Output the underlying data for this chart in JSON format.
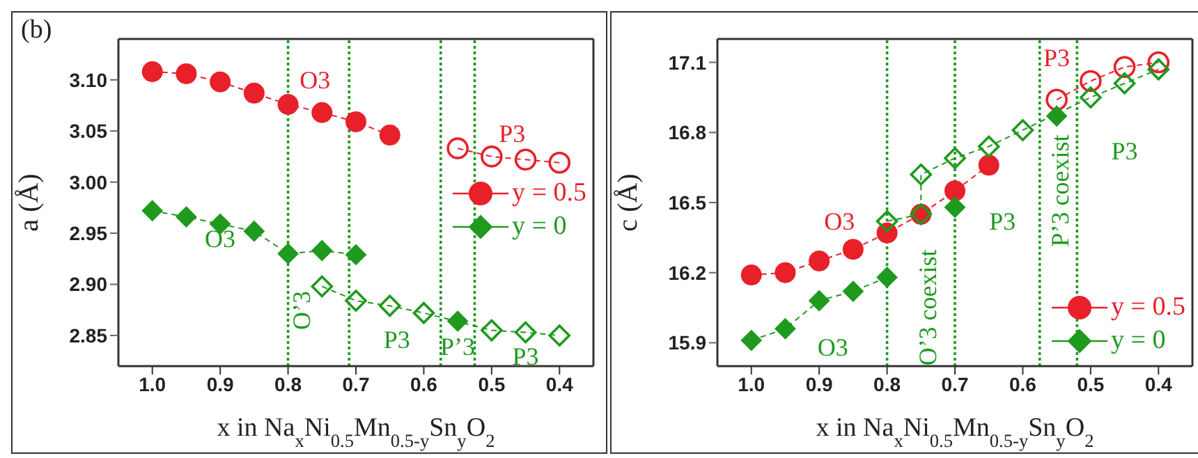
{
  "chart_data": [
    {
      "type": "line",
      "xlabel": "x in Na$_{x}$Ni$_{0.5}$Mn$_{0.5-y}$Sn$_{y}$O$_{2}$",
      "ylabel": "a (Å)",
      "xlim": [
        1.05,
        0.35
      ],
      "ylim": [
        2.82,
        3.14
      ],
      "xticks": [
        {
          "value": 1,
          "label": "1.0"
        },
        0.9,
        0.8,
        0.7,
        0.6,
        0.5,
        0.4
      ],
      "yticks": [
        {
          "value": 2.85,
          "label": "2.85"
        },
        {
          "value": 2.9,
          "label": "2.90"
        },
        {
          "value": 2.95,
          "label": "2.95"
        },
        {
          "value": 3,
          "label": "3.00"
        },
        {
          "value": 3.05,
          "label": "3.05"
        },
        {
          "value": 3.1,
          "label": "3.10"
        }
      ],
      "legend": "right",
      "grid": false,
      "line_style": "dashed",
      "series": [
        {
          "name": "y = 0.5",
          "color": "#e8202a",
          "marker": "circle",
          "x": [
            1,
            0.95,
            0.9,
            0.85,
            0.8,
            0.75,
            0.7,
            0.65
          ],
          "values": [
            3.108,
            3.106,
            3.098,
            3.087,
            3.076,
            3.068,
            3.059,
            3.046
          ]
        },
        {
          "color": "#e8202a",
          "marker": "circle",
          "x": [
            0.55,
            0.5,
            0.45,
            0.4
          ],
          "values": [
            3.033,
            3.025,
            3.022,
            3.019
          ]
        },
        {
          "name": "y = 0",
          "color": "#1f9a1f",
          "marker": "diamond",
          "x": [
            1,
            0.95,
            0.9,
            0.85,
            0.8,
            0.75,
            0.7,
            0.6,
            0.55
          ],
          "values": [
            2.972,
            2.966,
            2.959,
            2.952,
            2.93,
            2.933,
            2.929,
            null,
            2.864
          ]
        },
        {
          "color": "#1f9a1f",
          "marker": "diamond",
          "x": [
            0.75,
            0.7,
            0.65,
            0.6,
            0.5,
            0.45,
            0.4
          ],
          "values": [
            2.898,
            2.884,
            2.879,
            2.872,
            2.855,
            2.853,
            2.85
          ]
        }
      ],
      "ref_lines": [
        {
          "axis": "x",
          "value": 0.8,
          "color": "#1f9a1f",
          "line_style": "dotted"
        },
        {
          "axis": "x",
          "value": 0.71,
          "color": "#1f9a1f",
          "line_style": "dotted"
        },
        {
          "axis": "x",
          "value": 0.575,
          "color": "#1f9a1f",
          "line_style": "dotted"
        },
        {
          "axis": "x",
          "value": 0.525,
          "color": "#1f9a1f",
          "line_style": "dotted"
        }
      ],
      "annotations": [
        "(b)",
        "O3",
        "P3",
        "O3",
        "O’3",
        "P3",
        "P’3",
        "P3"
      ]
    },
    {
      "type": "line",
      "xlabel": "x in Na$_{x}$Ni$_{0.5}$Mn$_{0.5-y}$Sn$_{y}$O$_{2}$",
      "ylabel": "c (Å)",
      "xlim": [
        1.05,
        0.35
      ],
      "ylim": [
        15.8,
        17.2
      ],
      "xticks": [
        {
          "value": 1,
          "label": "1.0"
        },
        0.9,
        0.8,
        0.7,
        0.6,
        0.5,
        0.4
      ],
      "yticks": [
        15.9,
        16.2,
        16.5,
        16.8,
        17.1
      ],
      "legend": "bottom right",
      "grid": false,
      "line_style": "dashed",
      "series": [
        {
          "name": "y = 0.5",
          "color": "#e8202a",
          "marker": "circle",
          "x": [
            1,
            0.95,
            0.9,
            0.85,
            0.8,
            0.75,
            0.7,
            0.65
          ],
          "values": [
            16.19,
            16.2,
            16.25,
            16.3,
            16.37,
            16.45,
            16.55,
            16.66
          ]
        },
        {
          "color": "#e8202a",
          "marker": "circle",
          "x": [
            0.55,
            0.5,
            0.45,
            0.4
          ],
          "values": [
            16.94,
            17.02,
            17.08,
            17.1
          ]
        },
        {
          "name": "y = 0",
          "color": "#1f9a1f",
          "marker": "diamond",
          "x": [
            1,
            0.95,
            0.9,
            0.85,
            0.8,
            0.75,
            0.7,
            0.6,
            0.55
          ],
          "values": [
            15.91,
            15.96,
            16.08,
            16.12,
            16.18,
            null,
            16.48,
            null,
            16.87
          ]
        },
        {
          "color": "#1f9a1f",
          "marker": "diamond",
          "x": [
            0.8,
            0.75,
            0.75,
            0.7,
            0.65,
            0.6,
            0.5,
            0.45,
            0.4
          ],
          "values": [
            16.42,
            16.45,
            16.62,
            16.69,
            16.74,
            16.81,
            16.95,
            17.01,
            17.07
          ]
        }
      ],
      "ref_lines": [
        {
          "axis": "x",
          "value": 0.8,
          "color": "#1f9a1f",
          "line_style": "dotted"
        },
        {
          "axis": "x",
          "value": 0.7,
          "color": "#1f9a1f",
          "line_style": "dotted"
        },
        {
          "axis": "x",
          "value": 0.575,
          "color": "#1f9a1f",
          "line_style": "dotted"
        },
        {
          "axis": "x",
          "value": 0.52,
          "color": "#1f9a1f",
          "line_style": "dotted"
        }
      ],
      "annotations": [
        "P3",
        "O3",
        "O3",
        "O’3 coexist",
        "P3",
        "P’3 coexist",
        "P3"
      ]
    }
  ]
}
